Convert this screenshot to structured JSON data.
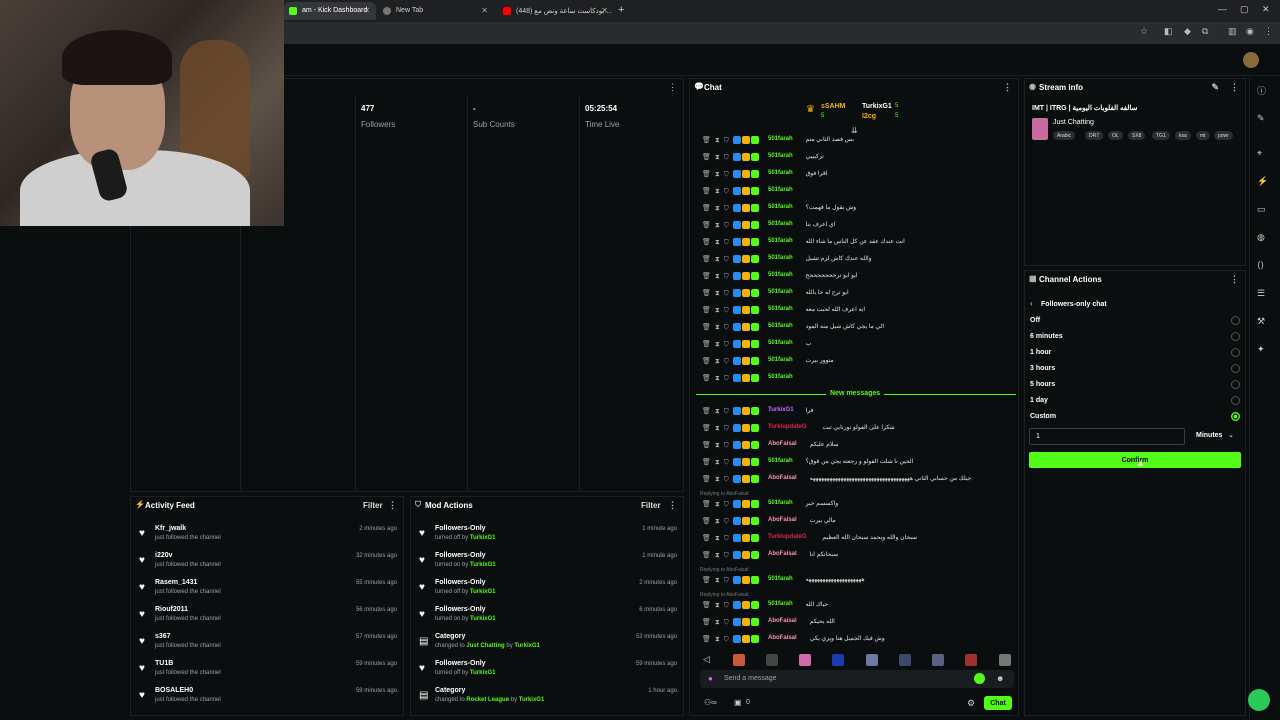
{
  "browser": {
    "tabs": [
      {
        "label": "am - Kick Dashboard"
      },
      {
        "label": "New Tab"
      },
      {
        "label": "(448) بودكاست ساعة ونص مع ..."
      }
    ]
  },
  "stats": [
    {
      "value": "477",
      "label": "Followers"
    },
    {
      "value": "-",
      "label": "Sub Counts"
    },
    {
      "value": "05:25:54",
      "label": "Time Live"
    }
  ],
  "activity_feed": {
    "title": "Activity Feed",
    "filter": "Filter",
    "items": [
      {
        "name": "Kfr_jwalk",
        "sub": "just followed the channel",
        "time": "2 minutes ago"
      },
      {
        "name": "i220v",
        "sub": "just followed the channel",
        "time": "32 minutes ago"
      },
      {
        "name": "Rasem_1431",
        "sub": "just followed the channel",
        "time": "55 minutes ago"
      },
      {
        "name": "Riouf2011",
        "sub": "just followed the channel",
        "time": "56 minutes ago"
      },
      {
        "name": "s367",
        "sub": "just followed the channel",
        "time": "57 minutes ago"
      },
      {
        "name": "TU1B",
        "sub": "just followed the channel",
        "time": "59 minutes ago"
      },
      {
        "name": "BOSALEH0",
        "sub": "just followed the channel",
        "time": "59 minutes ago"
      }
    ]
  },
  "mod_actions": {
    "title": "Mod Actions",
    "filter": "Filter",
    "items": [
      {
        "name": "Followers-Only",
        "pre": "turned off by",
        "by": "TurkixG1",
        "mid": "",
        "extra": "",
        "time": "1 minute ago"
      },
      {
        "name": "Followers-Only",
        "pre": "turned on by",
        "by": "TurkixG1",
        "mid": "",
        "extra": "",
        "time": "1 minute ago"
      },
      {
        "name": "Followers-Only",
        "pre": "turned off by",
        "by": "TurkixG1",
        "mid": "",
        "extra": "",
        "time": "2 minutes ago"
      },
      {
        "name": "Followers-Only",
        "pre": "turned on by",
        "by": "TurkixG1",
        "mid": "",
        "extra": "",
        "time": "6 minutes ago"
      },
      {
        "name": "Category",
        "pre": "changed to",
        "by": "Just Chatting",
        "mid": "by",
        "extra": "TurkixG1",
        "time": "53 minutes ago"
      },
      {
        "name": "Followers-Only",
        "pre": "turned off by",
        "by": "TurkixG1",
        "mid": "",
        "extra": "",
        "time": "59 minutes ago"
      },
      {
        "name": "Category",
        "pre": "changed to",
        "by": "Rocket League",
        "mid": "by",
        "extra": "TurkixG1",
        "time": "1 hour ago"
      }
    ]
  },
  "chat": {
    "title": "Chat",
    "pinned_users": [
      "sSAHM",
      "TurkixG1",
      "I2cg"
    ],
    "pinned_counts": [
      "5",
      "5",
      "5"
    ],
    "new_messages": "New messages",
    "messages": [
      {
        "user": "501farah",
        "msg": "بس قصد الثاني متم",
        "color": "#53fc18"
      },
      {
        "user": "501farah",
        "msg": "تركيييي",
        "color": "#53fc18"
      },
      {
        "user": "501farah",
        "msg": "اقرا فوق",
        "color": "#53fc18"
      },
      {
        "user": "501farah",
        "msg": "",
        "color": "#53fc18"
      },
      {
        "user": "501farah",
        "msg": "وش يقول ما فهمت؟",
        "color": "#53fc18"
      },
      {
        "user": "501farah",
        "msg": "اي اعرف بنا",
        "color": "#53fc18"
      },
      {
        "user": "501farah",
        "msg": "انت عندك عقد عن كل الناس ما شاء الله",
        "color": "#53fc18"
      },
      {
        "user": "501farah",
        "msg": "والله عندك كاش لزم تشيل",
        "color": "#53fc18"
      },
      {
        "user": "501farah",
        "msg": "ايو ايو ترحححححححح",
        "color": "#53fc18"
      },
      {
        "user": "501farah",
        "msg": "ايو ترح له خا بالله",
        "color": "#53fc18"
      },
      {
        "user": "501farah",
        "msg": "ايه اعرف الله لحبت معه",
        "color": "#53fc18"
      },
      {
        "user": "501farah",
        "msg": "الي ما يجي كاش شيل منه المود",
        "color": "#53fc18"
      },
      {
        "user": "501farah",
        "msg": "ب",
        "color": "#53fc18"
      },
      {
        "user": "501farah",
        "msg": "متوور بيرت",
        "color": "#53fc18"
      },
      {
        "user": "501farah",
        "msg": "",
        "color": "#53fc18"
      }
    ],
    "new": [
      {
        "user": "TurkixG1",
        "msg": "فرا",
        "color": "#c86cff"
      },
      {
        "user": "TurkiupdateG",
        "msg": "شكرا على الفولو تورتايي ثبت",
        "color": "#e0274a"
      },
      {
        "user": "AboFaisal",
        "msg": "سلام عليكم",
        "color": "#ff8fb0"
      },
      {
        "user": "501farah",
        "msg": "الحين نا شلت الفولو و رجعته يجي من فوق؟",
        "color": "#53fc18"
      },
      {
        "user": "AboFaisal",
        "msg": "جيلك من حسابي الثاني ههههههههههههههههههههههههههههههههههههه",
        "color": "#ff8fb0"
      },
      {
        "user": "501farah",
        "msg": "واكسسم حير",
        "color": "#53fc18"
      },
      {
        "user": "AboFaisal",
        "msg": "مالي بيرت",
        "color": "#ff8fb0"
      },
      {
        "user": "TurkiupdateG",
        "msg": "سبحان والله وبحمد سبحان الله العظيم",
        "color": "#e0274a"
      },
      {
        "user": "AboFaisal",
        "msg": "سبحانكم انا",
        "color": "#ff8fb0"
      },
      {
        "user": "501farah",
        "msg": "ههههههههههههههههههههه",
        "color": "#53fc18"
      },
      {
        "user": "501farah",
        "msg": "حياك الله",
        "color": "#53fc18"
      },
      {
        "user": "AboFaisal",
        "msg": "الله يحيكم",
        "color": "#ff8fb0"
      },
      {
        "user": "AboFaisal",
        "msg": "وش فيك الجميل هنا ويزي يكي",
        "color": "#ff8fb0"
      }
    ],
    "replies": [
      "Replying to AboFaisal:",
      "Replying to AboFaisal:",
      "Replying to AboFaisal:"
    ],
    "input_placeholder": "Send a message",
    "chat_button": "Chat",
    "viewer_count": "0"
  },
  "stream_info": {
    "title": "Stream info",
    "stream_title": "IMT | ITRG | سالفه الفلوبات اليومية",
    "category": "Just Chatting",
    "tags": [
      "Arabic",
      "DR7",
      "OL",
      "SX8",
      "TG1",
      "ksa",
      "mt",
      "powr"
    ]
  },
  "channel_actions": {
    "title": "Channel Actions",
    "subtitle": "Followers-only chat",
    "options": [
      "Off",
      "6 minutes",
      "1 hour",
      "3 hours",
      "5 hours",
      "1 day",
      "Custom"
    ],
    "selected_index": 6,
    "custom_value": "1",
    "unit": "Minutes",
    "confirm": "Confirm"
  }
}
